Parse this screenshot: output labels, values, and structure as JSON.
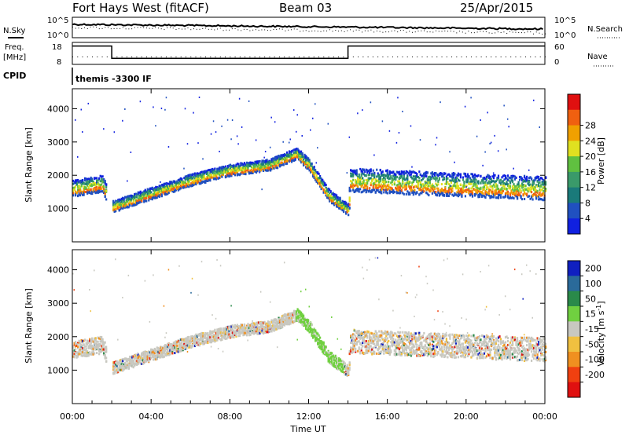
{
  "header": {
    "title": "Fort Hays West (fitACF)",
    "beam": "Beam 03",
    "date": "25/Apr/2015"
  },
  "top_panels": {
    "nsky_label": "N.Sky",
    "nsearch_label": "N.Search",
    "freq_label_1": "Freq.",
    "freq_label_2": "[MHz]",
    "nave_label": "Nave",
    "cpid_label": "CPID",
    "cpid_text": "themis -3300 IF",
    "noise_ticks_left": [
      "10^5",
      "10^0"
    ],
    "noise_ticks_right": [
      "10^5",
      "10^0"
    ],
    "freq_ticks_left": [
      "18",
      "8"
    ],
    "freq_ticks_right": [
      "60",
      "0"
    ]
  },
  "chart_data": [
    {
      "type": "heatmap",
      "xlabel": "",
      "ylabel": "Slant Range [km]",
      "colorbar_label": "Power [dB]",
      "x_range_hours": [
        0,
        24
      ],
      "ylim": [
        0,
        4600
      ],
      "y_ticks": [
        1000,
        2000,
        3000,
        4000
      ],
      "colorbar_ticks": [
        4,
        8,
        12,
        16,
        20,
        24,
        28
      ],
      "colorbar_colors": [
        "#1020e0",
        "#2050c0",
        "#1a7a7a",
        "#3a9a6a",
        "#60c040",
        "#e0e020",
        "#f0a000",
        "#f06010",
        "#e01010"
      ],
      "echo_band": [
        {
          "t": 0.0,
          "range": 1600
        },
        {
          "t": 1.5,
          "range": 1750
        },
        {
          "t": 2.0,
          "range": 1050
        },
        {
          "t": 4.0,
          "range": 1450
        },
        {
          "t": 6.0,
          "range": 1850
        },
        {
          "t": 8.0,
          "range": 2150
        },
        {
          "t": 10.0,
          "range": 2300
        },
        {
          "t": 11.4,
          "range": 2650
        },
        {
          "t": 12.0,
          "range": 2300
        },
        {
          "t": 13.0,
          "range": 1400
        },
        {
          "t": 14.0,
          "range": 950
        },
        {
          "t": 14.1,
          "range": 1850
        },
        {
          "t": 18.0,
          "range": 1750
        },
        {
          "t": 22.0,
          "range": 1650
        },
        {
          "t": 24.0,
          "range": 1600
        }
      ]
    },
    {
      "type": "heatmap",
      "xlabel": "Time UT",
      "ylabel": "Slant Range [km]",
      "colorbar_label": "Velocity [m s-1]",
      "x_range_hours": [
        0,
        24
      ],
      "ylim": [
        0,
        4600
      ],
      "y_ticks": [
        1000,
        2000,
        3000,
        4000
      ],
      "x_ticks": [
        "00:00",
        "04:00",
        "08:00",
        "12:00",
        "16:00",
        "20:00",
        "00:00"
      ],
      "colorbar_ticks": [
        200,
        100,
        50,
        15,
        -15,
        -50,
        -100,
        -200
      ],
      "colorbar_colors": [
        "#1020c0",
        "#2a6a9a",
        "#2a8a4a",
        "#70d040",
        "#c8c8c0",
        "#f0c040",
        "#f09020",
        "#f04010",
        "#e01010"
      ]
    }
  ]
}
